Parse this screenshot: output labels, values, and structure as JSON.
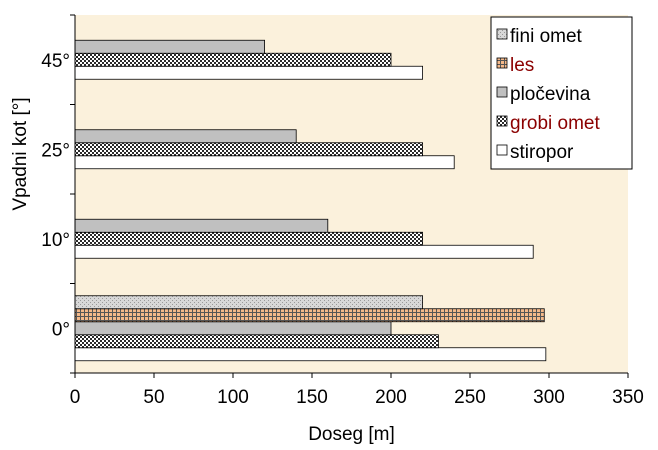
{
  "chart_data": {
    "type": "bar",
    "orientation": "horizontal",
    "title": "",
    "xlabel": "Doseg [m]",
    "ylabel": "Vpadni kot  [°]",
    "xlim": [
      0,
      350
    ],
    "xticks": [
      "0",
      "50",
      "100",
      "150",
      "200",
      "250",
      "300",
      "350"
    ],
    "categories": [
      "0°",
      "10°",
      "25°",
      "45°"
    ],
    "grid": false,
    "legend_position": "top-right",
    "background": "#fbf1dc",
    "series": [
      {
        "name": "fini omet",
        "pattern": "dots",
        "colors": {
          "fill": "#d8d8d8",
          "mark": "#9a9a9a"
        },
        "values": [
          220,
          null,
          null,
          null
        ]
      },
      {
        "name": "les",
        "pattern": "grid",
        "colors": {
          "fill": "#f4b98a",
          "mark": "#555555"
        },
        "values": [
          297,
          null,
          null,
          null
        ]
      },
      {
        "name": "pločevina",
        "pattern": "solid",
        "colors": {
          "fill": "#c0c0c0",
          "mark": "#c0c0c0"
        },
        "values": [
          200,
          160,
          140,
          120
        ]
      },
      {
        "name": "grobi omet",
        "pattern": "checker",
        "colors": {
          "fill": "#ffffff",
          "mark": "#2a2a2a"
        },
        "values": [
          230,
          220,
          220,
          200
        ]
      },
      {
        "name": "stiropor",
        "pattern": "solid",
        "colors": {
          "fill": "#ffffff",
          "mark": "#ffffff"
        },
        "values": [
          298,
          290,
          240,
          220
        ]
      }
    ]
  }
}
